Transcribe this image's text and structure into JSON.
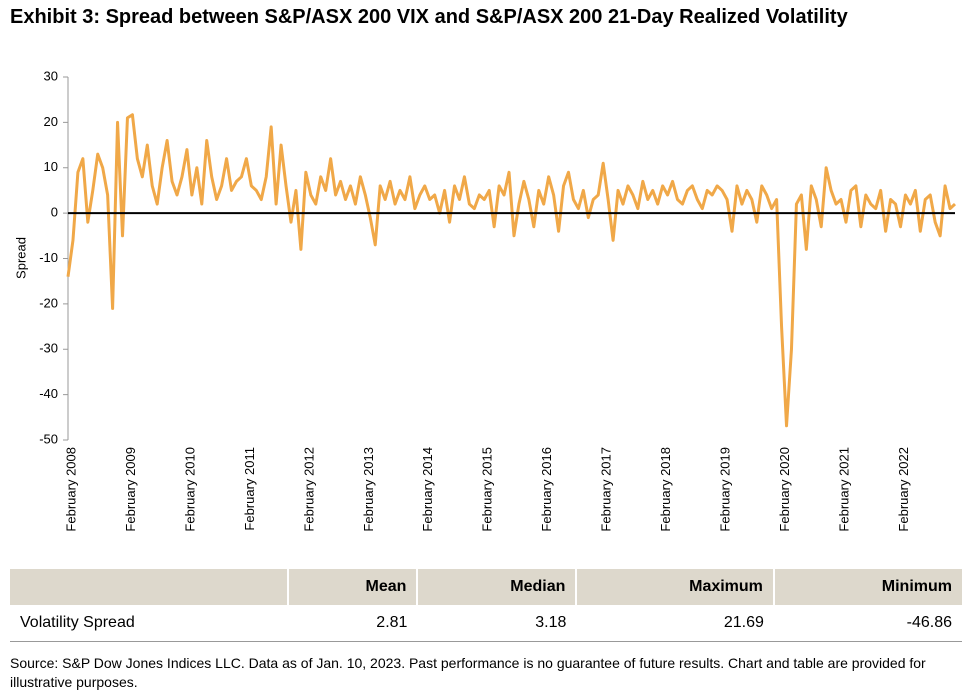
{
  "chart_data": {
    "type": "line",
    "title": "Exhibit 3: Spread between S&P/ASX 200 VIX and S&P/ASX 200 21-Day Realized Volatility",
    "y_label": "Spread",
    "categories": [
      "February 2008",
      null,
      null,
      null,
      null,
      null,
      null,
      null,
      null,
      null,
      null,
      null,
      "February 2009",
      null,
      null,
      null,
      null,
      null,
      null,
      null,
      null,
      null,
      null,
      null,
      "February 2010",
      null,
      null,
      null,
      null,
      null,
      null,
      null,
      null,
      null,
      null,
      null,
      "February 2011",
      null,
      null,
      null,
      null,
      null,
      null,
      null,
      null,
      null,
      null,
      null,
      "February 2012",
      null,
      null,
      null,
      null,
      null,
      null,
      null,
      null,
      null,
      null,
      null,
      "February 2013",
      null,
      null,
      null,
      null,
      null,
      null,
      null,
      null,
      null,
      null,
      null,
      "February 2014",
      null,
      null,
      null,
      null,
      null,
      null,
      null,
      null,
      null,
      null,
      null,
      "February 2015",
      null,
      null,
      null,
      null,
      null,
      null,
      null,
      null,
      null,
      null,
      null,
      "February 2016",
      null,
      null,
      null,
      null,
      null,
      null,
      null,
      null,
      null,
      null,
      null,
      "February 2017",
      null,
      null,
      null,
      null,
      null,
      null,
      null,
      null,
      null,
      null,
      null,
      "February 2018",
      null,
      null,
      null,
      null,
      null,
      null,
      null,
      null,
      null,
      null,
      null,
      "February 2019",
      null,
      null,
      null,
      null,
      null,
      null,
      null,
      null,
      null,
      null,
      null,
      "February 2020",
      null,
      null,
      null,
      null,
      null,
      null,
      null,
      null,
      null,
      null,
      null,
      "February 2021",
      null,
      null,
      null,
      null,
      null,
      null,
      null,
      null,
      null,
      null,
      null,
      "February 2022",
      null,
      null,
      null,
      null,
      null,
      null,
      null,
      null,
      null,
      null,
      null
    ],
    "series": [
      {
        "name": "Volatility Spread",
        "color": "#f0a848",
        "values": [
          -14,
          -6,
          9,
          12,
          -2,
          5,
          13,
          10,
          4,
          -21,
          20,
          -5,
          21,
          21.69,
          12,
          8,
          15,
          6,
          2,
          10,
          16,
          7,
          4,
          8,
          14,
          4,
          10,
          2,
          16,
          8,
          3,
          6,
          12,
          5,
          7,
          8,
          12,
          6,
          5,
          3,
          8,
          19,
          2,
          15,
          6,
          -2,
          5,
          -8,
          9,
          4,
          2,
          8,
          5,
          12,
          4,
          7,
          3,
          6,
          2,
          8,
          4,
          -1,
          -7,
          6,
          3,
          7,
          2,
          5,
          3,
          8,
          1,
          4,
          6,
          3,
          4,
          0,
          5,
          -2,
          6,
          3,
          8,
          2,
          1,
          4,
          3,
          5,
          -3,
          6,
          4,
          9,
          -5,
          2,
          7,
          3,
          -3,
          5,
          2,
          8,
          4,
          -4,
          6,
          9,
          3,
          1,
          5,
          -1,
          3,
          4,
          11,
          3,
          -6,
          5,
          2,
          6,
          4,
          1,
          7,
          3,
          5,
          2,
          6,
          4,
          7,
          3,
          2,
          5,
          6,
          3,
          1,
          5,
          4,
          6,
          5,
          3,
          -4,
          6,
          2,
          5,
          3,
          -2,
          6,
          4,
          1,
          3,
          -25,
          -46.86,
          -30,
          2,
          4,
          -8,
          6,
          3,
          -3,
          10,
          5,
          2,
          3,
          -2,
          5,
          6,
          -3,
          4,
          2,
          1,
          5,
          -4,
          3,
          2,
          -3,
          4,
          2,
          5,
          -4,
          3,
          4,
          -2,
          -5,
          6,
          1,
          2
        ]
      }
    ],
    "ylim": [
      -50,
      30
    ],
    "yticks": [
      -50,
      -40,
      -30,
      -20,
      -10,
      0,
      10,
      20,
      30
    ],
    "zero_line": true
  },
  "table": {
    "header": [
      "Mean",
      "Median",
      "Maximum",
      "Minimum"
    ],
    "rows": [
      [
        "Volatility Spread",
        "2.81",
        "3.18",
        "21.69",
        "-46.86"
      ]
    ]
  },
  "source": "Source: S&P Dow Jones Indices LLC. Data as of Jan. 10, 2023. Past performance is no guarantee of future results. Chart and table are provided for illustrative purposes."
}
